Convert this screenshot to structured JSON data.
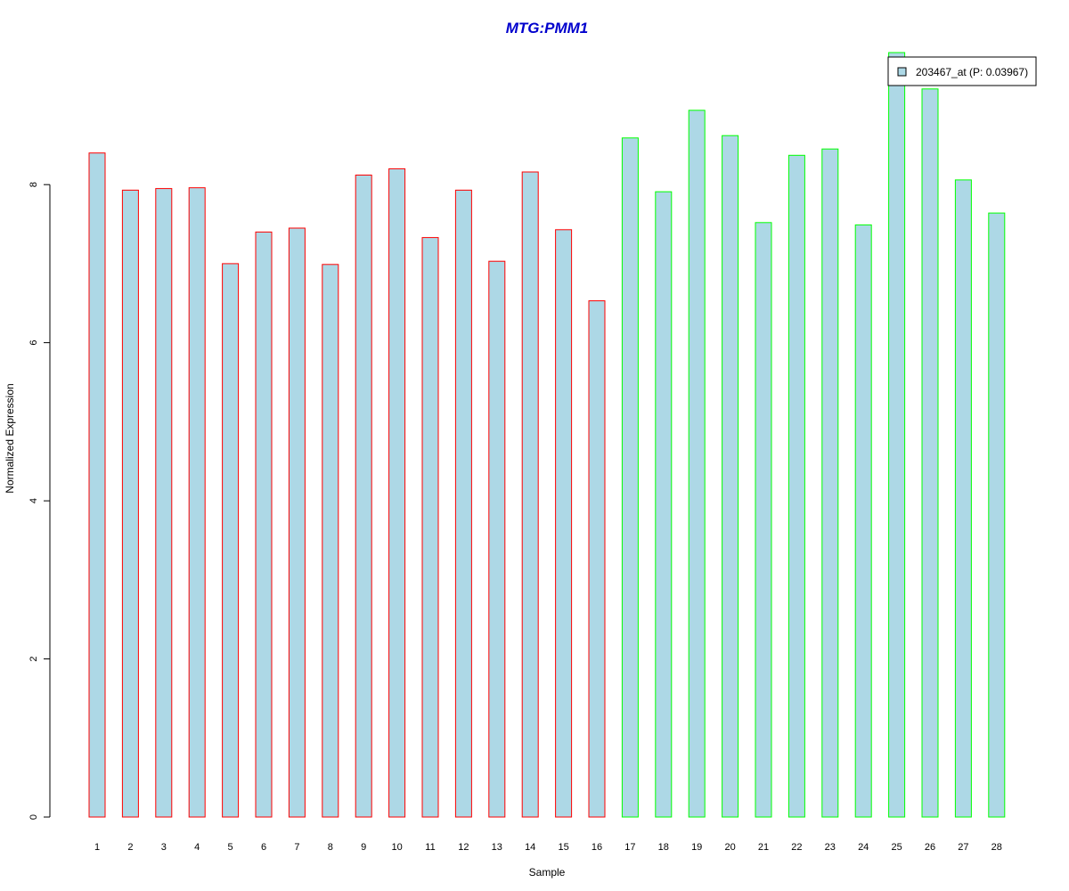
{
  "chart_data": {
    "type": "bar",
    "title": "MTG:PMM1",
    "xlabel": "Sample",
    "ylabel": "Normalized Expression",
    "ylim": [
      0,
      9.67
    ],
    "yticks": [
      0,
      2,
      4,
      6,
      8
    ],
    "grid": false,
    "legend": {
      "position": "top-right",
      "label": "203467_at (P: 0.03967)"
    },
    "categories": [
      "1",
      "2",
      "3",
      "4",
      "5",
      "6",
      "7",
      "8",
      "9",
      "10",
      "11",
      "12",
      "13",
      "14",
      "15",
      "16",
      "17",
      "18",
      "19",
      "20",
      "21",
      "22",
      "23",
      "24",
      "25",
      "26",
      "27",
      "28"
    ],
    "values": [
      8.4,
      7.93,
      7.95,
      7.96,
      7.0,
      7.4,
      7.45,
      6.99,
      8.12,
      8.2,
      7.33,
      7.93,
      7.03,
      8.16,
      7.43,
      6.53,
      8.59,
      7.91,
      8.94,
      8.62,
      7.52,
      8.37,
      8.45,
      7.49,
      9.67,
      9.21,
      8.06,
      7.64
    ],
    "groups": [
      "a",
      "a",
      "a",
      "a",
      "a",
      "a",
      "a",
      "a",
      "a",
      "a",
      "a",
      "a",
      "a",
      "a",
      "a",
      "a",
      "b",
      "b",
      "b",
      "b",
      "b",
      "b",
      "b",
      "b",
      "b",
      "b",
      "b",
      "b"
    ],
    "colors": {
      "bar_fill": "#add8e6",
      "group_a_border": "#ff0000",
      "group_b_border": "#00ff00",
      "title": "#0000cd",
      "axis": "#000000"
    }
  }
}
